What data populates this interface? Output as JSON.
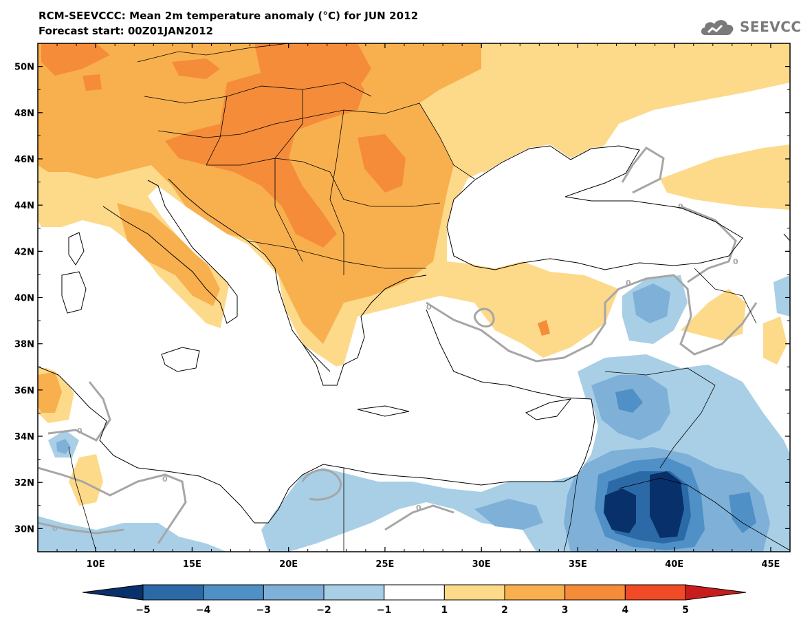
{
  "header": {
    "title": "RCM-SEEVCCC: Mean 2m temperature anomaly (°C) for JUN 2012",
    "subtitle": "Forecast start: 00Z01JAN2012",
    "logo_text": "SEEVCCC"
  },
  "map": {
    "lon_range": [
      7,
      46
    ],
    "lat_range": [
      29,
      51
    ],
    "lon_ticks": [
      "10E",
      "15E",
      "20E",
      "25E",
      "30E",
      "35E",
      "40E",
      "45E"
    ],
    "lat_ticks": [
      "50N",
      "48N",
      "46N",
      "44N",
      "42N",
      "40N",
      "38N",
      "36N",
      "34N",
      "32N",
      "30N"
    ],
    "contour_label": "0",
    "contour_color": "#a6a6a6"
  },
  "colorbar": {
    "levels": [
      "−5",
      "−4",
      "−3",
      "−2",
      "−1",
      "1",
      "2",
      "3",
      "4",
      "5"
    ],
    "colors": [
      "#08306b",
      "#2c6aa7",
      "#4f90c6",
      "#7fb0d8",
      "#a8cfe5",
      "#ffffff",
      "#fdd98a",
      "#f8b04e",
      "#f48c3a",
      "#f04a26",
      "#c81d1d"
    ]
  }
}
